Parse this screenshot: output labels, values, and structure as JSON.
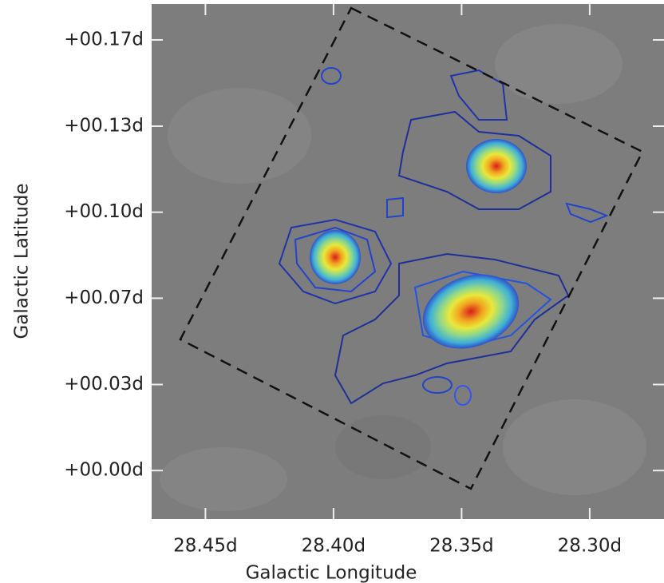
{
  "chart_data": {
    "type": "image",
    "x_label": "Galactic Longitude",
    "y_label": "Galactic Latitude",
    "xlim": [
      28.471,
      28.271
    ],
    "ylim": [
      -0.0188,
      0.1806
    ],
    "xticks": [
      {
        "value": 28.45,
        "label": "28.45d"
      },
      {
        "value": 28.4,
        "label": "28.40d"
      },
      {
        "value": 28.35,
        "label": "28.35d"
      },
      {
        "value": 28.3,
        "label": "28.30d"
      }
    ],
    "yticks": [
      {
        "value": 0,
        "label": "+00.00d"
      },
      {
        "value": 0.0333,
        "label": "+00.03d"
      },
      {
        "value": 0.0667,
        "label": "+00.07d"
      },
      {
        "value": 0.1,
        "label": "+00.10d"
      },
      {
        "value": 0.1333,
        "label": "+00.13d"
      },
      {
        "value": 0.1667,
        "label": "+00.17d"
      }
    ]
  }
}
